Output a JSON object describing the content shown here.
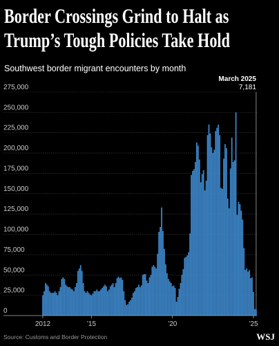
{
  "chart_data": {
    "type": "bar",
    "title": "Border Crossings Grind to Halt as Trump’s Tough Policies Take Hold",
    "subtitle": "Southwest border migrant encounters by month",
    "source": "Source: Customs and Border Protection",
    "logo": "WSJ",
    "annotation": {
      "title": "March 2025",
      "label": "7,181"
    },
    "color": "#3d86c9",
    "grid": true,
    "ylim": [
      0,
      275000
    ],
    "yticks": [
      0,
      {
        "value": 25000,
        "label": "25,000"
      },
      {
        "value": 50000,
        "label": "50,000"
      },
      {
        "value": 75000,
        "label": "75,000"
      },
      {
        "value": 100000,
        "label": "100,000"
      },
      {
        "value": 125000,
        "label": "125,000"
      },
      {
        "value": 150000,
        "label": "150,000"
      },
      {
        "value": 175000,
        "label": "175,000"
      },
      {
        "value": 200000,
        "label": "200,000"
      },
      {
        "value": 225000,
        "label": "225,000"
      },
      {
        "value": 250000,
        "label": "250,000"
      },
      {
        "value": 275000,
        "label": "275,000"
      }
    ],
    "categories": [
      "2012",
      null,
      null,
      null,
      null,
      null,
      null,
      null,
      null,
      null,
      null,
      null,
      null,
      null,
      null,
      null,
      null,
      null,
      null,
      null,
      null,
      null,
      null,
      null,
      null,
      null,
      null,
      null,
      null,
      null,
      null,
      null,
      null,
      null,
      null,
      null,
      "’15",
      null,
      null,
      null,
      null,
      null,
      null,
      null,
      null,
      null,
      null,
      null,
      null,
      null,
      null,
      null,
      null,
      null,
      null,
      null,
      null,
      null,
      null,
      null,
      null,
      null,
      null,
      null,
      null,
      null,
      null,
      null,
      null,
      null,
      null,
      null,
      null,
      null,
      null,
      null,
      null,
      null,
      null,
      null,
      null,
      null,
      null,
      null,
      null,
      null,
      null,
      null,
      null,
      null,
      null,
      null,
      null,
      null,
      null,
      null,
      "’20",
      null,
      null,
      null,
      null,
      null,
      null,
      null,
      null,
      null,
      null,
      null,
      null,
      null,
      null,
      null,
      null,
      null,
      null,
      null,
      null,
      null,
      null,
      null,
      null,
      null,
      null,
      null,
      null,
      null,
      null,
      null,
      null,
      null,
      null,
      null,
      null,
      null,
      null,
      null,
      null,
      null,
      null,
      null,
      null,
      null,
      null,
      null,
      null,
      null,
      null,
      null,
      null,
      null,
      null,
      null,
      null,
      null,
      null,
      null,
      "’25",
      null,
      null
    ],
    "values": [
      25000,
      30000,
      40000,
      38000,
      36000,
      30000,
      28000,
      28000,
      28000,
      30000,
      28000,
      25000,
      30000,
      35000,
      45000,
      47000,
      45000,
      38000,
      36000,
      35000,
      35000,
      33000,
      32000,
      30000,
      35000,
      40000,
      55000,
      58000,
      62000,
      55000,
      40000,
      30000,
      28000,
      30000,
      28000,
      26000,
      25000,
      27000,
      30000,
      30000,
      32000,
      30000,
      30000,
      32000,
      34000,
      36000,
      38000,
      36000,
      30000,
      32000,
      36000,
      38000,
      40000,
      35000,
      40000,
      46000,
      48000,
      46000,
      47000,
      44000,
      30000,
      19000,
      13000,
      14000,
      17000,
      19000,
      22000,
      28000,
      30000,
      34000,
      35000,
      38000,
      35000,
      37000,
      50000,
      51000,
      51000,
      43000,
      40000,
      47000,
      50000,
      60000,
      62000,
      60000,
      58000,
      76000,
      103000,
      109000,
      133000,
      104000,
      82000,
      63000,
      52000,
      45000,
      42000,
      40000,
      36000,
      37000,
      34000,
      17000,
      23000,
      33000,
      40000,
      50000,
      57000,
      71000,
      72000,
      74000,
      78000,
      101000,
      173000,
      178000,
      180000,
      189000,
      213000,
      209000,
      192000,
      164000,
      174000,
      179000,
      154000,
      166000,
      222000,
      235000,
      224000,
      207000,
      200000,
      204000,
      227000,
      231000,
      235000,
      222000,
      157000,
      156000,
      193000,
      211000,
      206000,
      144000,
      132000,
      181000,
      219000,
      189000,
      191000,
      250000,
      124000,
      140000,
      137000,
      129000,
      118000,
      83000,
      56000,
      58000,
      54000,
      56000,
      46000,
      47000,
      29000,
      8000,
      7181
    ]
  }
}
